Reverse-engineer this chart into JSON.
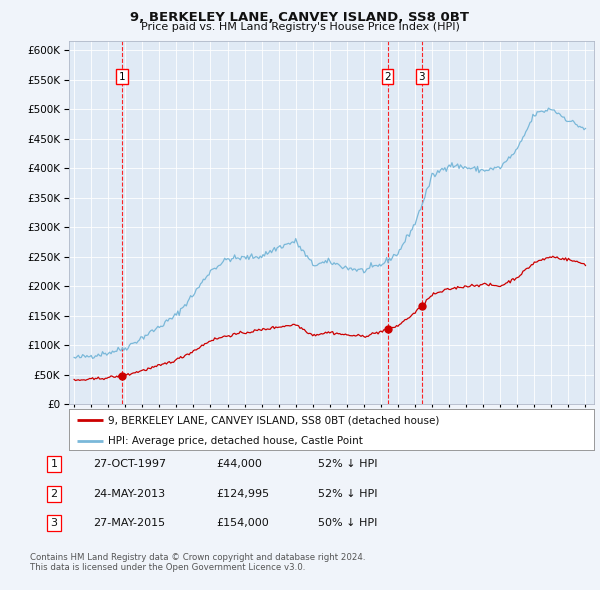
{
  "title": "9, BERKELEY LANE, CANVEY ISLAND, SS8 0BT",
  "subtitle": "Price paid vs. HM Land Registry's House Price Index (HPI)",
  "legend_line1": "9, BERKELEY LANE, CANVEY ISLAND, SS8 0BT (detached house)",
  "legend_line2": "HPI: Average price, detached house, Castle Point",
  "footer1": "Contains HM Land Registry data © Crown copyright and database right 2024.",
  "footer2": "This data is licensed under the Open Government Licence v3.0.",
  "transactions": [
    {
      "label": "1",
      "date": 1997.82,
      "price": 44000
    },
    {
      "label": "2",
      "date": 2013.39,
      "price": 124995
    },
    {
      "label": "3",
      "date": 2015.4,
      "price": 154000
    }
  ],
  "transaction_details": [
    {
      "num": "1",
      "date": "27-OCT-1997",
      "price": "£44,000",
      "hpi": "52% ↓ HPI"
    },
    {
      "num": "2",
      "date": "24-MAY-2013",
      "price": "£124,995",
      "hpi": "52% ↓ HPI"
    },
    {
      "num": "3",
      "date": "27-MAY-2015",
      "price": "£154,000",
      "hpi": "50% ↓ HPI"
    }
  ],
  "hpi_color": "#7ab8d9",
  "price_color": "#cc0000",
  "bg_color": "#f0f4fa",
  "plot_bg": "#e0eaf5",
  "grid_color": "#ffffff"
}
